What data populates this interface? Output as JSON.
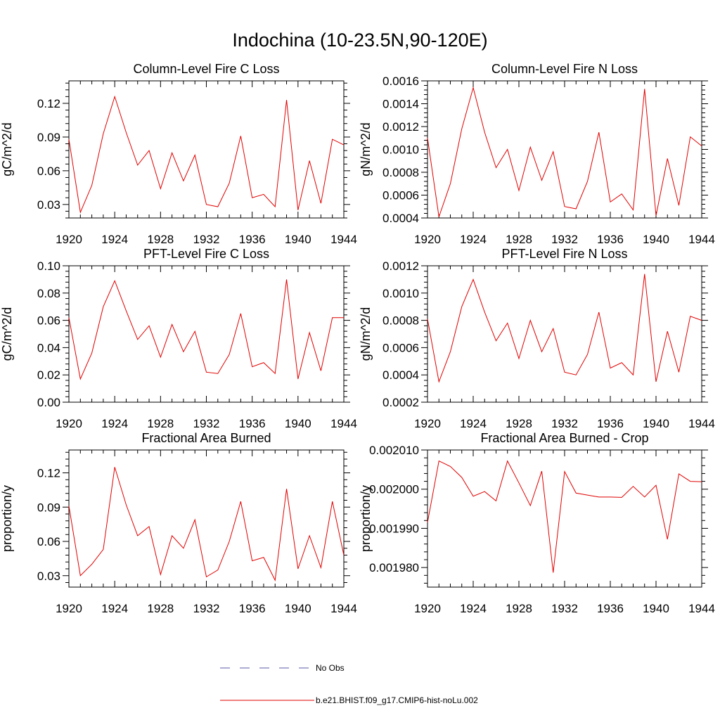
{
  "figure": {
    "title": "Indochina (10-23.5N,90-120E)",
    "line_color": "#e00000",
    "obs_color": "#5a5aa8"
  },
  "legend": {
    "obs_label": "No Obs",
    "model_label": "b.e21.BHIST.f09_g17.CMIP6-hist-noLu.002"
  },
  "chart_data": [
    {
      "type": "line",
      "title": "Column-Level Fire C Loss",
      "ylabel": "gC/m^2/d",
      "xlim": [
        1920,
        1944
      ],
      "ylim": [
        0.018,
        0.14
      ],
      "xticks": [
        1920,
        1924,
        1928,
        1932,
        1936,
        1940,
        1944
      ],
      "yticks": [
        0.03,
        0.06,
        0.09,
        0.12
      ],
      "ytick_labels": [
        "0.03",
        "0.06",
        "0.09",
        "0.12"
      ],
      "x": [
        1920,
        1921,
        1922,
        1923,
        1924,
        1925,
        1926,
        1927,
        1928,
        1929,
        1930,
        1931,
        1932,
        1933,
        1934,
        1935,
        1936,
        1937,
        1938,
        1939,
        1940,
        1941,
        1942,
        1943,
        1944
      ],
      "series": [
        {
          "values": [
            0.088,
            0.023,
            0.047,
            0.093,
            0.126,
            0.094,
            0.065,
            0.078,
            0.044,
            0.076,
            0.051,
            0.074,
            0.03,
            0.028,
            0.049,
            0.091,
            0.036,
            0.039,
            0.028,
            0.123,
            0.025,
            0.069,
            0.031,
            0.088,
            0.083
          ]
        }
      ]
    },
    {
      "type": "line",
      "title": "Column-Level Fire N Loss",
      "ylabel": "gN/m^2/d",
      "xlim": [
        1920,
        1944
      ],
      "ylim": [
        0.0004,
        0.0016
      ],
      "xticks": [
        1920,
        1924,
        1928,
        1932,
        1936,
        1940,
        1944
      ],
      "yticks": [
        0.0004,
        0.0006,
        0.0008,
        0.001,
        0.0012,
        0.0014,
        0.0016
      ],
      "ytick_labels": [
        "0.0004",
        "0.0006",
        "0.0008",
        "0.0010",
        "0.0012",
        "0.0014",
        "0.0016"
      ],
      "x": [
        1920,
        1921,
        1922,
        1923,
        1924,
        1925,
        1926,
        1927,
        1928,
        1929,
        1930,
        1931,
        1932,
        1933,
        1934,
        1935,
        1936,
        1937,
        1938,
        1939,
        1940,
        1941,
        1942,
        1943,
        1944
      ],
      "series": [
        {
          "values": [
            0.0011,
            0.00041,
            0.0007,
            0.00118,
            0.00154,
            0.00115,
            0.00084,
            0.001,
            0.00064,
            0.00102,
            0.00073,
            0.00098,
            0.0005,
            0.00048,
            0.00072,
            0.00115,
            0.00054,
            0.00061,
            0.00047,
            0.00153,
            0.00042,
            0.00092,
            0.00051,
            0.00111,
            0.00103
          ]
        }
      ]
    },
    {
      "type": "line",
      "title": "PFT-Level Fire C Loss",
      "ylabel": "gC/m^2/d",
      "xlim": [
        1920,
        1944
      ],
      "ylim": [
        0.0,
        0.1
      ],
      "xticks": [
        1920,
        1924,
        1928,
        1932,
        1936,
        1940,
        1944
      ],
      "yticks": [
        0.0,
        0.02,
        0.04,
        0.06,
        0.08,
        0.1
      ],
      "ytick_labels": [
        "0.00",
        "0.02",
        "0.04",
        "0.06",
        "0.08",
        "0.10"
      ],
      "x": [
        1920,
        1921,
        1922,
        1923,
        1924,
        1925,
        1926,
        1927,
        1928,
        1929,
        1930,
        1931,
        1932,
        1933,
        1934,
        1935,
        1936,
        1937,
        1938,
        1939,
        1940,
        1941,
        1942,
        1943,
        1944
      ],
      "series": [
        {
          "values": [
            0.062,
            0.017,
            0.036,
            0.07,
            0.089,
            0.067,
            0.046,
            0.056,
            0.033,
            0.057,
            0.037,
            0.052,
            0.022,
            0.021,
            0.035,
            0.065,
            0.026,
            0.029,
            0.021,
            0.09,
            0.017,
            0.051,
            0.023,
            0.062,
            0.062
          ]
        }
      ]
    },
    {
      "type": "line",
      "title": "PFT-Level Fire N Loss",
      "ylabel": "gN/m^2/d",
      "xlim": [
        1920,
        1944
      ],
      "ylim": [
        0.0002,
        0.0012
      ],
      "xticks": [
        1920,
        1924,
        1928,
        1932,
        1936,
        1940,
        1944
      ],
      "yticks": [
        0.0002,
        0.0004,
        0.0006,
        0.0008,
        0.001,
        0.0012
      ],
      "ytick_labels": [
        "0.0002",
        "0.0004",
        "0.0006",
        "0.0008",
        "0.0010",
        "0.0012"
      ],
      "x": [
        1920,
        1921,
        1922,
        1923,
        1924,
        1925,
        1926,
        1927,
        1928,
        1929,
        1930,
        1931,
        1932,
        1933,
        1934,
        1935,
        1936,
        1937,
        1938,
        1939,
        1940,
        1941,
        1942,
        1943,
        1944
      ],
      "series": [
        {
          "values": [
            0.00081,
            0.00035,
            0.00057,
            0.0009,
            0.0011,
            0.00086,
            0.00065,
            0.00078,
            0.00052,
            0.0008,
            0.00057,
            0.00074,
            0.00042,
            0.0004,
            0.00055,
            0.00086,
            0.00045,
            0.00049,
            0.0004,
            0.00114,
            0.00035,
            0.00072,
            0.00042,
            0.00083,
            0.0008
          ]
        }
      ]
    },
    {
      "type": "line",
      "title": "Fractional Area Burned",
      "ylabel": "proportion/y",
      "xlim": [
        1920,
        1944
      ],
      "ylim": [
        0.02,
        0.14
      ],
      "xticks": [
        1920,
        1924,
        1928,
        1932,
        1936,
        1940,
        1944
      ],
      "yticks": [
        0.03,
        0.06,
        0.09,
        0.12
      ],
      "ytick_labels": [
        "0.03",
        "0.06",
        "0.09",
        "0.12"
      ],
      "x": [
        1920,
        1921,
        1922,
        1923,
        1924,
        1925,
        1926,
        1927,
        1928,
        1929,
        1930,
        1931,
        1932,
        1933,
        1934,
        1935,
        1936,
        1937,
        1938,
        1939,
        1940,
        1941,
        1942,
        1943,
        1944
      ],
      "series": [
        {
          "values": [
            0.091,
            0.03,
            0.04,
            0.053,
            0.125,
            0.092,
            0.065,
            0.073,
            0.031,
            0.065,
            0.054,
            0.079,
            0.029,
            0.035,
            0.06,
            0.095,
            0.043,
            0.046,
            0.026,
            0.106,
            0.036,
            0.065,
            0.037,
            0.095,
            0.048
          ]
        }
      ]
    },
    {
      "type": "line",
      "title": "Fractional Area Burned - Crop",
      "ylabel": "proportion/y",
      "xlim": [
        1920,
        1944
      ],
      "ylim": [
        0.001975,
        0.00201
      ],
      "xticks": [
        1920,
        1924,
        1928,
        1932,
        1936,
        1940,
        1944
      ],
      "yticks": [
        0.00198,
        0.00199,
        0.002,
        0.00201
      ],
      "ytick_labels": [
        "0.001980",
        "0.001990",
        "0.002000",
        "0.002010"
      ],
      "x": [
        1920,
        1921,
        1922,
        1923,
        1924,
        1925,
        1926,
        1927,
        1928,
        1929,
        1930,
        1931,
        1932,
        1933,
        1934,
        1935,
        1936,
        1937,
        1938,
        1939,
        1940,
        1941,
        1942,
        1943,
        1944
      ],
      "series": [
        {
          "values": [
            0.0019915,
            0.0020072,
            0.0020058,
            0.002003,
            0.0019982,
            0.0019994,
            0.001997,
            0.0020072,
            0.0020016,
            0.0019958,
            0.0020046,
            0.0019787,
            0.0020045,
            0.001999,
            0.0019985,
            0.001998,
            0.001998,
            0.0019979,
            0.0020007,
            0.001998,
            0.002001,
            0.0019872,
            0.0020039,
            0.002002,
            0.0020019
          ]
        }
      ]
    }
  ]
}
